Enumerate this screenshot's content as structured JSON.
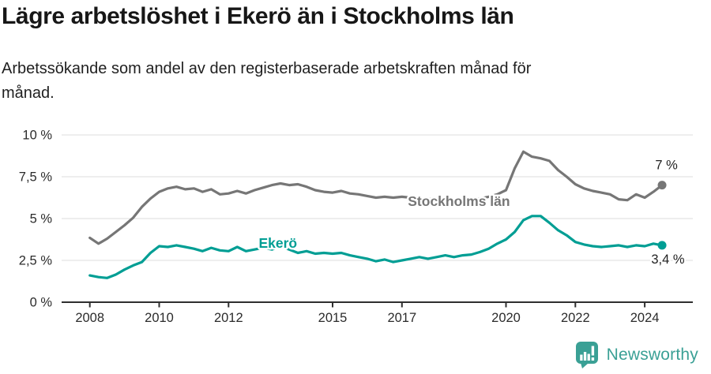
{
  "header": {
    "title": "Lägre arbetslöshet i Ekerö än i Stockholms län",
    "subtitle_line1": "Arbetssökande som andel av den registerbaserade arbetskraften månad för",
    "subtitle_line2": "månad."
  },
  "chart_data": {
    "type": "line",
    "unit": "%",
    "grid": true,
    "ylim": [
      0,
      10
    ],
    "x_start": 2008,
    "x_step": 0.25,
    "x_ticks": [
      2008,
      2010,
      2012,
      2015,
      2017,
      2020,
      2022,
      2024
    ],
    "y_ticks": [
      {
        "label": "10 %",
        "value": 10
      },
      {
        "label": "7,5 %",
        "value": 7.5
      },
      {
        "label": "5 %",
        "value": 5
      },
      {
        "label": "2,5 %",
        "value": 2.5
      },
      {
        "label": "0 %",
        "value": 0
      }
    ],
    "axis_color": "#2f2f2f",
    "grid_color": "#dcdcdc",
    "tick_label_color": "#2b2b2b",
    "series": [
      {
        "name": "Stockholms län",
        "color": "#767676",
        "label_pos": {
          "x": 2017.17,
          "y": 5.75
        },
        "end_label": {
          "text": "7 %",
          "x": 2024.95,
          "y": 7.95
        },
        "values": [
          3.85,
          3.5,
          3.8,
          4.2,
          4.6,
          5.05,
          5.7,
          6.2,
          6.6,
          6.8,
          6.9,
          6.75,
          6.8,
          6.6,
          6.75,
          6.45,
          6.5,
          6.65,
          6.5,
          6.7,
          6.85,
          7.0,
          7.1,
          7.0,
          7.05,
          6.9,
          6.7,
          6.6,
          6.55,
          6.65,
          6.5,
          6.45,
          6.35,
          6.25,
          6.3,
          6.25,
          6.3,
          6.25,
          6.2,
          6.15,
          6.2,
          6.1,
          6.15,
          6.1,
          6.1,
          6.2,
          6.3,
          6.45,
          6.7,
          8.0,
          9.0,
          8.7,
          8.6,
          8.45,
          7.9,
          7.5,
          7.05,
          6.8,
          6.65,
          6.55,
          6.45,
          6.15,
          6.1,
          6.45,
          6.25,
          6.6,
          7.0
        ]
      },
      {
        "name": "Ekerö",
        "color": "#009E94",
        "label_pos": {
          "x": 2012.87,
          "y": 3.25
        },
        "end_label": {
          "text": "3,4 %",
          "x": 2025.15,
          "y": 2.3
        },
        "values": [
          1.6,
          1.5,
          1.45,
          1.65,
          1.95,
          2.2,
          2.4,
          2.95,
          3.35,
          3.3,
          3.4,
          3.3,
          3.2,
          3.05,
          3.25,
          3.1,
          3.05,
          3.3,
          3.05,
          3.15,
          3.25,
          3.15,
          3.35,
          3.15,
          2.95,
          3.05,
          2.9,
          2.95,
          2.9,
          2.95,
          2.8,
          2.7,
          2.6,
          2.45,
          2.55,
          2.4,
          2.5,
          2.6,
          2.7,
          2.6,
          2.7,
          2.8,
          2.7,
          2.8,
          2.85,
          3.0,
          3.2,
          3.5,
          3.75,
          4.2,
          4.9,
          5.15,
          5.15,
          4.75,
          4.3,
          4.0,
          3.6,
          3.45,
          3.35,
          3.3,
          3.35,
          3.4,
          3.3,
          3.4,
          3.35,
          3.5,
          3.4
        ]
      }
    ]
  },
  "footer": {
    "brand": "Newsworthy",
    "brand_color": "#3AA095"
  }
}
